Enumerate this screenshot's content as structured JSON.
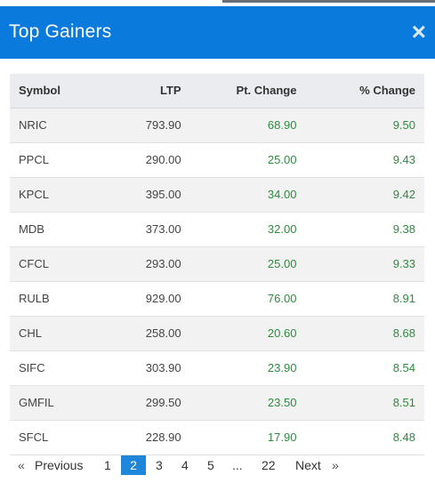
{
  "header": {
    "title": "Top Gainers",
    "close_label": "×"
  },
  "table": {
    "columns": [
      "Symbol",
      "LTP",
      "Pt. Change",
      "% Change"
    ],
    "rows": [
      [
        "NRIC",
        "793.90",
        "68.90",
        "9.50"
      ],
      [
        "PPCL",
        "290.00",
        "25.00",
        "9.43"
      ],
      [
        "KPCL",
        "395.00",
        "34.00",
        "9.42"
      ],
      [
        "MDB",
        "373.00",
        "32.00",
        "9.38"
      ],
      [
        "CFCL",
        "293.00",
        "25.00",
        "9.33"
      ],
      [
        "RULB",
        "929.00",
        "76.00",
        "8.91"
      ],
      [
        "CHL",
        "258.00",
        "20.60",
        "8.68"
      ],
      [
        "SIFC",
        "303.90",
        "23.90",
        "8.54"
      ],
      [
        "GMFIL",
        "299.50",
        "23.50",
        "8.51"
      ],
      [
        "SFCL",
        "228.90",
        "17.90",
        "8.48"
      ]
    ]
  },
  "pagination": {
    "prev_arrow": "«",
    "prev_label": "Previous",
    "pages": [
      "1",
      "2",
      "3",
      "4",
      "5"
    ],
    "ellipsis": "...",
    "last_page": "22",
    "next_label": "Next",
    "next_arrow": "»",
    "current": "2"
  },
  "colors": {
    "header_bg": "#0a7bdc",
    "positive": "#2e8b3e",
    "active_page": "#1f86da"
  }
}
